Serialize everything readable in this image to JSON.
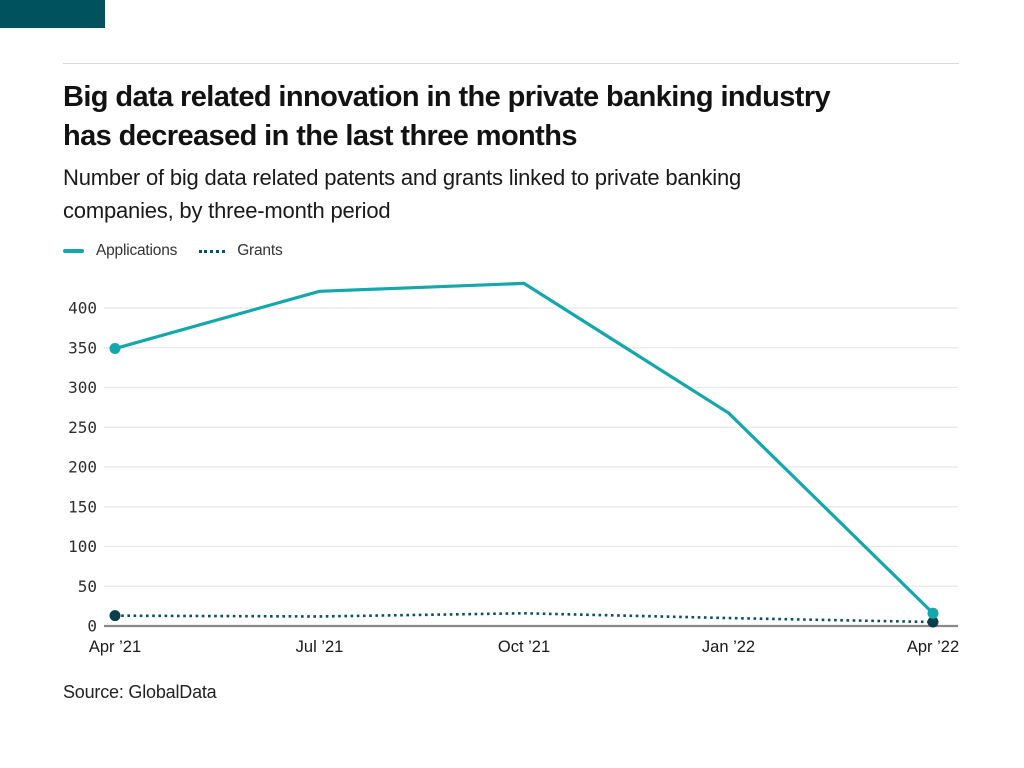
{
  "page": {
    "background": "#ffffff"
  },
  "brand_block": {
    "color": "#00535e"
  },
  "header": {
    "title_lines": [
      "Big data related innovation in the private banking industry",
      "has decreased in the last three months"
    ],
    "subtitle_lines": [
      "Number of big data related patents and grants linked to private banking",
      "companies, by three-month period"
    ]
  },
  "legend": {
    "items": [
      {
        "label": "Applications",
        "style": "solid",
        "color": "#14a7ab"
      },
      {
        "label": "Grants",
        "style": "dotted",
        "color": "#07525c"
      }
    ]
  },
  "chart_data": {
    "type": "line",
    "title": "Big data related innovation in the private banking industry has decreased in the last three months",
    "subtitle": "Number of big data related patents and grants linked to private banking companies, by three-month period",
    "categories": [
      "Apr ’21",
      "Jul ’21",
      "Oct ’21",
      "Jan ’22",
      "Apr ’22"
    ],
    "series": [
      {
        "name": "Applications",
        "values": [
          349,
          421,
          431,
          268,
          16
        ],
        "color": "#14a7ab",
        "marker_color": "#14a7ab",
        "style": "solid"
      },
      {
        "name": "Grants",
        "values": [
          13,
          12,
          16,
          10,
          5
        ],
        "color": "#07525c",
        "marker_color": "#093f4a",
        "style": "dotted"
      }
    ],
    "xlabel": "",
    "ylabel": "",
    "ylim": [
      0,
      430
    ],
    "yticks": [
      0,
      50,
      100,
      150,
      200,
      250,
      300,
      350,
      400
    ],
    "grid": "horizontal",
    "gridline_color": "#e8e8e8",
    "axis_line_color": "#8a8a8a",
    "legend_position": "top-left",
    "markers": "endpoints-only"
  },
  "footer": {
    "source": "Source: GlobalData"
  }
}
